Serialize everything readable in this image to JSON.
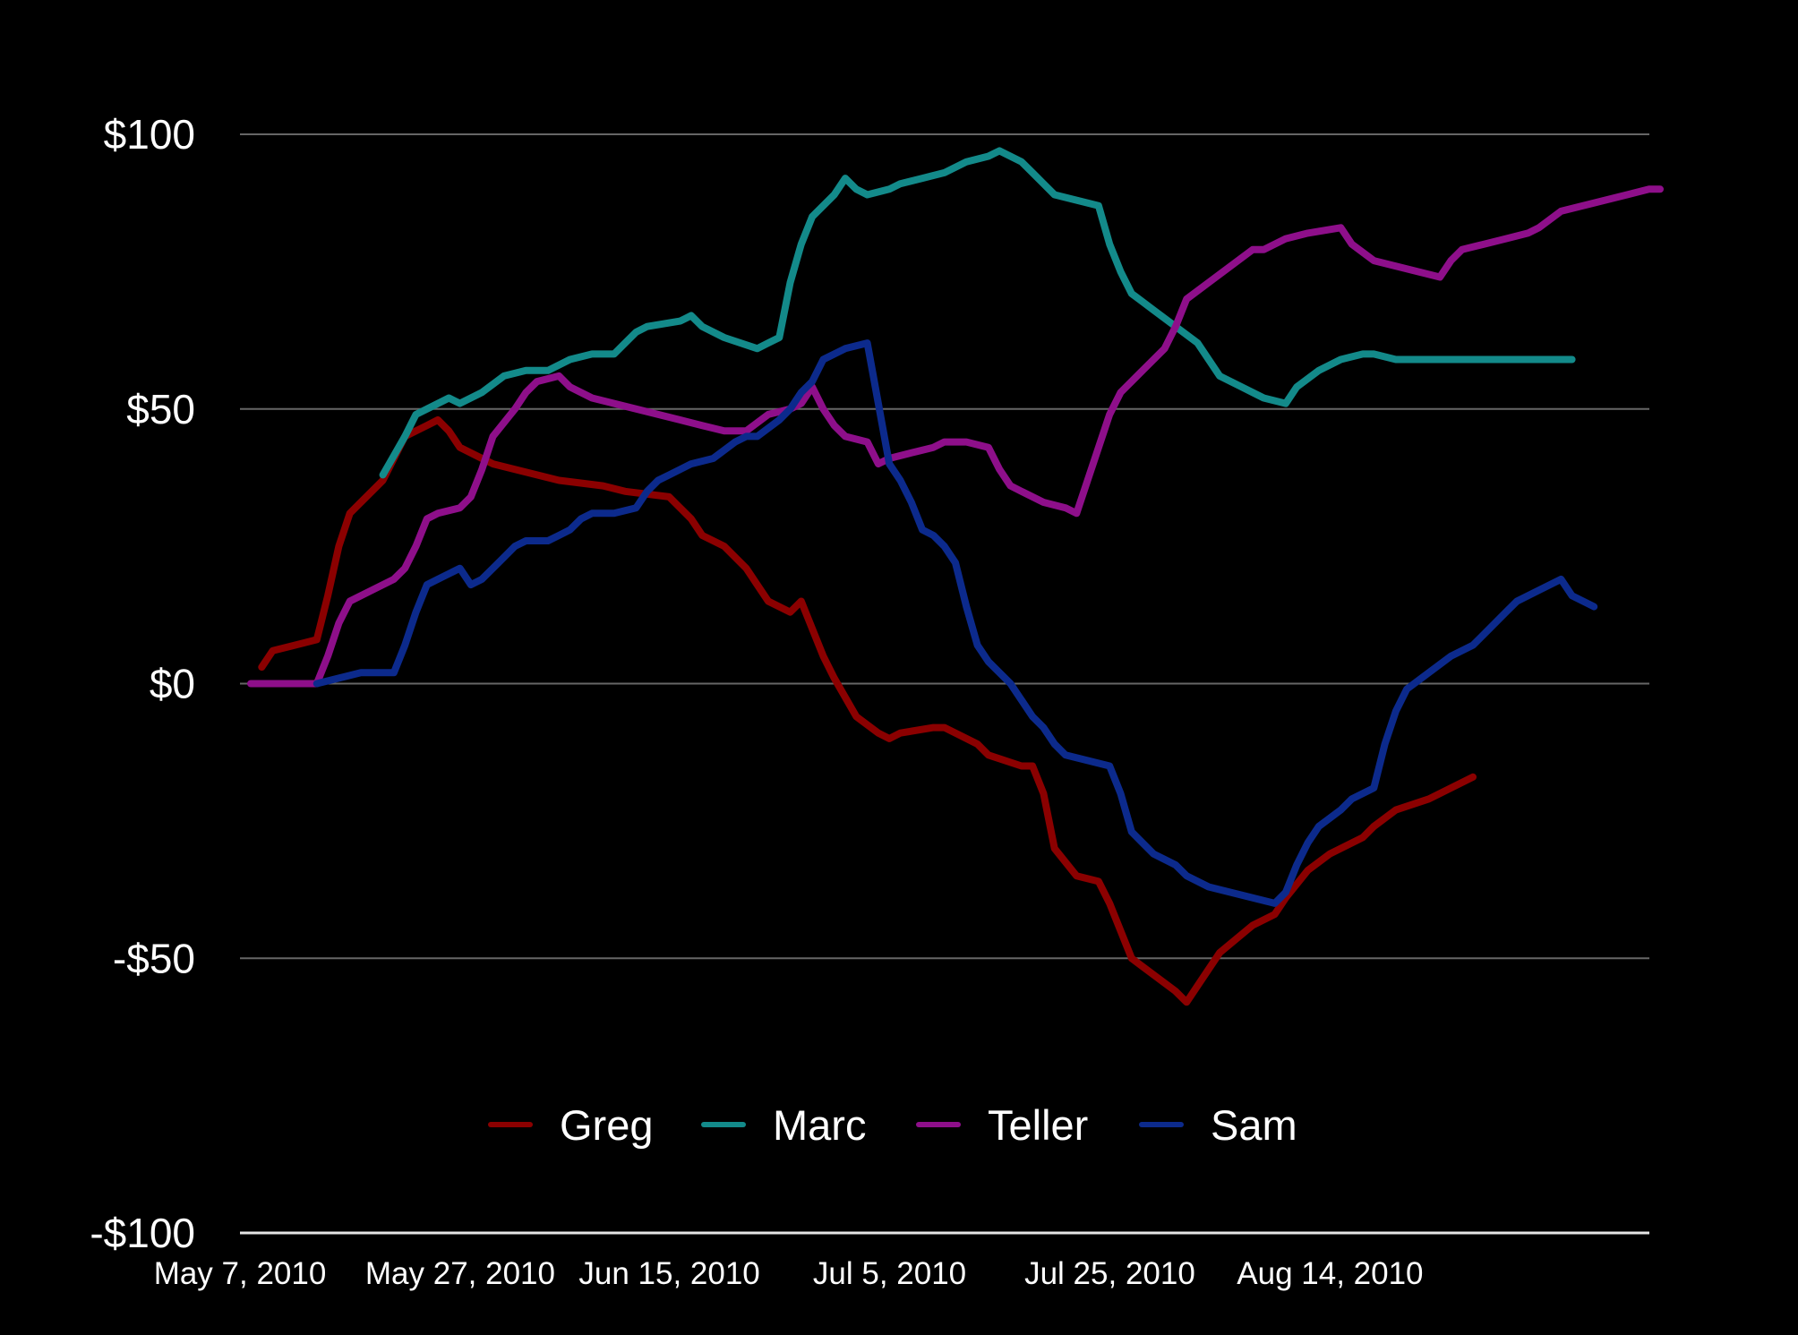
{
  "chart_data": {
    "type": "line",
    "title": "",
    "xlabel": "",
    "ylabel": "",
    "ylim": [
      -100,
      100
    ],
    "grid": true,
    "legend_position": "bottom-center",
    "y_ticks": [
      {
        "value": 100,
        "label": "$100"
      },
      {
        "value": 50,
        "label": "$50"
      },
      {
        "value": 0,
        "label": "$0"
      },
      {
        "value": -50,
        "label": "-$50"
      },
      {
        "value": -100,
        "label": "-$100"
      }
    ],
    "x_ticks": [
      {
        "day": 0,
        "label": "May 7, 2010"
      },
      {
        "day": 20,
        "label": "May 27, 2010"
      },
      {
        "day": 39,
        "label": "Jun 15, 2010"
      },
      {
        "day": 59,
        "label": "Jul 5, 2010"
      },
      {
        "day": 79,
        "label": "Jul 25, 2010"
      },
      {
        "day": 99,
        "label": "Aug 14, 2010"
      }
    ],
    "series": [
      {
        "name": "Greg",
        "color": "#8b0000",
        "points": [
          [
            1,
            3
          ],
          [
            2,
            6
          ],
          [
            4,
            7
          ],
          [
            6,
            8
          ],
          [
            7,
            16
          ],
          [
            8,
            25
          ],
          [
            9,
            31
          ],
          [
            10,
            33
          ],
          [
            12,
            37
          ],
          [
            13,
            41
          ],
          [
            14,
            45
          ],
          [
            16,
            47
          ],
          [
            17,
            48
          ],
          [
            18,
            46
          ],
          [
            19,
            43
          ],
          [
            21,
            41
          ],
          [
            22,
            40
          ],
          [
            24,
            39
          ],
          [
            26,
            38
          ],
          [
            28,
            37
          ],
          [
            32,
            36
          ],
          [
            34,
            35
          ],
          [
            38,
            34
          ],
          [
            40,
            30
          ],
          [
            41,
            27
          ],
          [
            43,
            25
          ],
          [
            45,
            21
          ],
          [
            46,
            18
          ],
          [
            47,
            15
          ],
          [
            49,
            13
          ],
          [
            50,
            15
          ],
          [
            51,
            10
          ],
          [
            52,
            5
          ],
          [
            53,
            1
          ],
          [
            55,
            -6
          ],
          [
            57,
            -9
          ],
          [
            58,
            -10
          ],
          [
            59,
            -9
          ],
          [
            62,
            -8
          ],
          [
            63,
            -8
          ],
          [
            64,
            -9
          ],
          [
            66,
            -11
          ],
          [
            67,
            -13
          ],
          [
            70,
            -15
          ],
          [
            71,
            -15
          ],
          [
            72,
            -20
          ],
          [
            73,
            -30
          ],
          [
            75,
            -35
          ],
          [
            77,
            -36
          ],
          [
            78,
            -40
          ],
          [
            80,
            -50
          ],
          [
            82,
            -53
          ],
          [
            84,
            -56
          ],
          [
            85,
            -58
          ],
          [
            86,
            -55
          ],
          [
            88,
            -49
          ],
          [
            91,
            -44
          ],
          [
            93,
            -42
          ],
          [
            94,
            -39
          ],
          [
            96,
            -34
          ],
          [
            98,
            -31
          ],
          [
            101,
            -28
          ],
          [
            102,
            -26
          ],
          [
            104,
            -23
          ],
          [
            107,
            -21
          ],
          [
            109,
            -19
          ],
          [
            111,
            -17
          ]
        ]
      },
      {
        "name": "Marc",
        "color": "#138a8a",
        "points": [
          [
            12,
            38
          ],
          [
            14,
            45
          ],
          [
            15,
            49
          ],
          [
            18,
            52
          ],
          [
            19,
            51
          ],
          [
            21,
            53
          ],
          [
            23,
            56
          ],
          [
            25,
            57
          ],
          [
            27,
            57
          ],
          [
            29,
            59
          ],
          [
            31,
            60
          ],
          [
            33,
            60
          ],
          [
            35,
            64
          ],
          [
            36,
            65
          ],
          [
            39,
            66
          ],
          [
            40,
            67
          ],
          [
            41,
            65
          ],
          [
            43,
            63
          ],
          [
            46,
            61
          ],
          [
            47,
            62
          ],
          [
            48,
            63
          ],
          [
            49,
            73
          ],
          [
            50,
            80
          ],
          [
            51,
            85
          ],
          [
            53,
            89
          ],
          [
            54,
            92
          ],
          [
            55,
            90
          ],
          [
            56,
            89
          ],
          [
            58,
            90
          ],
          [
            59,
            91
          ],
          [
            61,
            92
          ],
          [
            63,
            93
          ],
          [
            64,
            94
          ],
          [
            65,
            95
          ],
          [
            67,
            96
          ],
          [
            68,
            97
          ],
          [
            70,
            95
          ],
          [
            71,
            93
          ],
          [
            72,
            91
          ],
          [
            73,
            89
          ],
          [
            75,
            88
          ],
          [
            77,
            87
          ],
          [
            78,
            80
          ],
          [
            79,
            75
          ],
          [
            80,
            71
          ],
          [
            82,
            68
          ],
          [
            84,
            65
          ],
          [
            86,
            62
          ],
          [
            87,
            59
          ],
          [
            88,
            56
          ],
          [
            90,
            54
          ],
          [
            92,
            52
          ],
          [
            94,
            51
          ],
          [
            95,
            54
          ],
          [
            97,
            57
          ],
          [
            99,
            59
          ],
          [
            101,
            60
          ],
          [
            102,
            60
          ],
          [
            104,
            59
          ],
          [
            110,
            59
          ],
          [
            120,
            59
          ]
        ]
      },
      {
        "name": "Teller",
        "color": "#8e0f8a",
        "points": [
          [
            0,
            0
          ],
          [
            6,
            0
          ],
          [
            7,
            5
          ],
          [
            8,
            11
          ],
          [
            9,
            15
          ],
          [
            11,
            17
          ],
          [
            13,
            19
          ],
          [
            14,
            21
          ],
          [
            15,
            25
          ],
          [
            16,
            30
          ],
          [
            17,
            31
          ],
          [
            19,
            32
          ],
          [
            20,
            34
          ],
          [
            21,
            39
          ],
          [
            22,
            45
          ],
          [
            24,
            50
          ],
          [
            25,
            53
          ],
          [
            26,
            55
          ],
          [
            28,
            56
          ],
          [
            29,
            54
          ],
          [
            31,
            52
          ],
          [
            33,
            51
          ],
          [
            35,
            50
          ],
          [
            37,
            49
          ],
          [
            39,
            48
          ],
          [
            41,
            47
          ],
          [
            43,
            46
          ],
          [
            45,
            46
          ],
          [
            47,
            49
          ],
          [
            49,
            50
          ],
          [
            50,
            51
          ],
          [
            51,
            54
          ],
          [
            52,
            50
          ],
          [
            53,
            47
          ],
          [
            54,
            45
          ],
          [
            56,
            44
          ],
          [
            57,
            40
          ],
          [
            58,
            41
          ],
          [
            60,
            42
          ],
          [
            62,
            43
          ],
          [
            63,
            44
          ],
          [
            65,
            44
          ],
          [
            67,
            43
          ],
          [
            68,
            39
          ],
          [
            69,
            36
          ],
          [
            70,
            35
          ],
          [
            72,
            33
          ],
          [
            74,
            32
          ],
          [
            75,
            31
          ],
          [
            76,
            37
          ],
          [
            77,
            43
          ],
          [
            78,
            49
          ],
          [
            79,
            53
          ],
          [
            81,
            57
          ],
          [
            83,
            61
          ],
          [
            84,
            65
          ],
          [
            85,
            70
          ],
          [
            87,
            73
          ],
          [
            89,
            76
          ],
          [
            91,
            79
          ],
          [
            92,
            79
          ],
          [
            94,
            81
          ],
          [
            96,
            82
          ],
          [
            99,
            83
          ],
          [
            100,
            80
          ],
          [
            102,
            77
          ],
          [
            104,
            76
          ],
          [
            106,
            75
          ],
          [
            108,
            74
          ],
          [
            109,
            77
          ],
          [
            110,
            79
          ],
          [
            112,
            80
          ],
          [
            114,
            81
          ],
          [
            116,
            82
          ],
          [
            117,
            83
          ],
          [
            119,
            86
          ],
          [
            121,
            87
          ],
          [
            123,
            88
          ],
          [
            125,
            89
          ],
          [
            127,
            90
          ],
          [
            128,
            90
          ]
        ]
      },
      {
        "name": "Sam",
        "color": "#0c2a8c",
        "points": [
          [
            6,
            0
          ],
          [
            8,
            1
          ],
          [
            10,
            2
          ],
          [
            12,
            2
          ],
          [
            13,
            2
          ],
          [
            14,
            7
          ],
          [
            15,
            13
          ],
          [
            16,
            18
          ],
          [
            17,
            19
          ],
          [
            18,
            20
          ],
          [
            19,
            21
          ],
          [
            20,
            18
          ],
          [
            21,
            19
          ],
          [
            22,
            21
          ],
          [
            23,
            23
          ],
          [
            24,
            25
          ],
          [
            25,
            26
          ],
          [
            27,
            26
          ],
          [
            28,
            27
          ],
          [
            29,
            28
          ],
          [
            30,
            30
          ],
          [
            31,
            31
          ],
          [
            33,
            31
          ],
          [
            35,
            32
          ],
          [
            36,
            35
          ],
          [
            37,
            37
          ],
          [
            38,
            38
          ],
          [
            40,
            40
          ],
          [
            42,
            41
          ],
          [
            44,
            44
          ],
          [
            45,
            45
          ],
          [
            46,
            45
          ],
          [
            48,
            48
          ],
          [
            49,
            50
          ],
          [
            50,
            53
          ],
          [
            51,
            55
          ],
          [
            52,
            59
          ],
          [
            54,
            61
          ],
          [
            56,
            62
          ],
          [
            57,
            51
          ],
          [
            58,
            40
          ],
          [
            59,
            37
          ],
          [
            60,
            33
          ],
          [
            61,
            28
          ],
          [
            62,
            27
          ],
          [
            63,
            25
          ],
          [
            64,
            22
          ],
          [
            65,
            14
          ],
          [
            66,
            7
          ],
          [
            67,
            4
          ],
          [
            69,
            0
          ],
          [
            70,
            -3
          ],
          [
            71,
            -6
          ],
          [
            72,
            -8
          ],
          [
            73,
            -11
          ],
          [
            74,
            -13
          ],
          [
            76,
            -14
          ],
          [
            78,
            -15
          ],
          [
            79,
            -20
          ],
          [
            80,
            -27
          ],
          [
            82,
            -31
          ],
          [
            84,
            -33
          ],
          [
            85,
            -35
          ],
          [
            87,
            -37
          ],
          [
            89,
            -38
          ],
          [
            91,
            -39
          ],
          [
            93,
            -40
          ],
          [
            94,
            -38
          ],
          [
            95,
            -33
          ],
          [
            96,
            -29
          ],
          [
            97,
            -26
          ],
          [
            99,
            -23
          ],
          [
            100,
            -21
          ],
          [
            102,
            -19
          ],
          [
            103,
            -11
          ],
          [
            104,
            -5
          ],
          [
            105,
            -1
          ],
          [
            107,
            2
          ],
          [
            109,
            5
          ],
          [
            111,
            7
          ],
          [
            112,
            9
          ],
          [
            114,
            13
          ],
          [
            115,
            15
          ],
          [
            117,
            17
          ],
          [
            119,
            19
          ],
          [
            120,
            16
          ],
          [
            122,
            14
          ]
        ]
      }
    ]
  }
}
